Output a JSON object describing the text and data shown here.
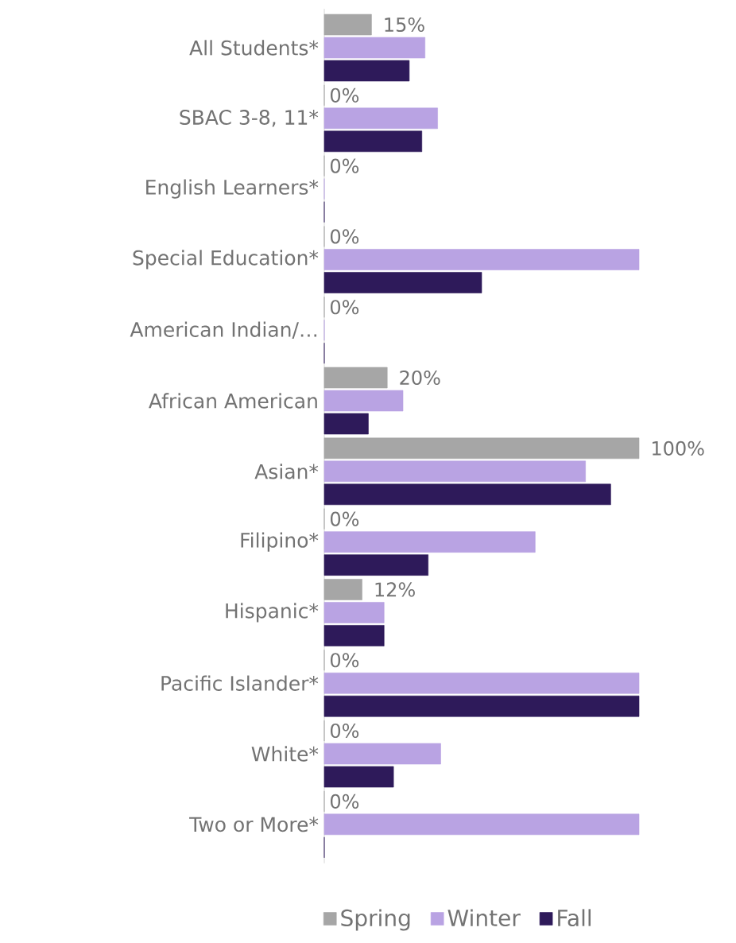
{
  "chart_data": {
    "type": "bar",
    "orientation": "horizontal",
    "legend": "bottom",
    "xlim": [
      0,
      100
    ],
    "categories": [
      "All Students*",
      "SBAC 3-8, 11*",
      "English Learners*",
      "Special Education*",
      "American Indian/…",
      "African American",
      "Asian*",
      "Filipino*",
      "Hispanic*",
      "Pacific Islander*",
      "White*",
      "Two or More*"
    ],
    "series": [
      {
        "name": "Spring",
        "color": "#a6a6a6",
        "values": [
          15,
          0,
          0,
          0,
          0,
          20,
          100,
          0,
          12,
          0,
          0,
          0
        ],
        "value_labels": [
          "15%",
          "0%",
          "0%",
          "0%",
          "0%",
          "20%",
          "100%",
          "0%",
          "12%",
          "0%",
          "0%",
          "0%"
        ]
      },
      {
        "name": "Winter",
        "color": "#b9a3e3",
        "values": [
          32,
          36,
          0,
          100,
          0,
          25,
          83,
          67,
          19,
          100,
          37,
          100
        ]
      },
      {
        "name": "Fall",
        "color": "#2e1a5a",
        "values": [
          27,
          31,
          0,
          50,
          0,
          14,
          91,
          33,
          19,
          100,
          22,
          0
        ]
      }
    ]
  }
}
